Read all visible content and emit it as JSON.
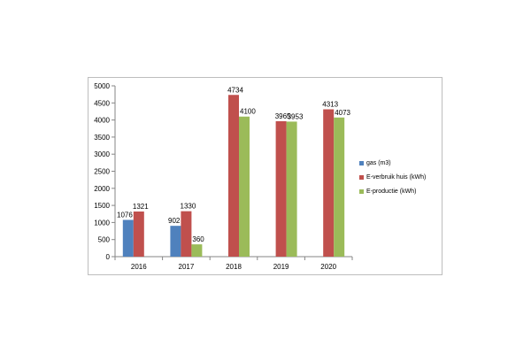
{
  "chart_data": {
    "type": "bar",
    "categories": [
      "2016",
      "2017",
      "2018",
      "2019",
      "2020"
    ],
    "series": [
      {
        "name": "gas (m3)",
        "color": "#4f81bd",
        "values": [
          1076,
          902,
          null,
          null,
          null
        ]
      },
      {
        "name": "E-verbruik huis (kWh)",
        "color": "#c0504d",
        "values": [
          1321,
          1330,
          4734,
          3965,
          4313
        ]
      },
      {
        "name": "E-productie (kWh)",
        "color": "#9bbb59",
        "values": [
          null,
          360,
          4100,
          3953,
          4073
        ]
      }
    ],
    "ylim": [
      0,
      5000
    ],
    "yticks": [
      0,
      500,
      1000,
      1500,
      2000,
      2500,
      3000,
      3500,
      4000,
      4500,
      5000
    ],
    "grid": false,
    "legend": "right"
  }
}
